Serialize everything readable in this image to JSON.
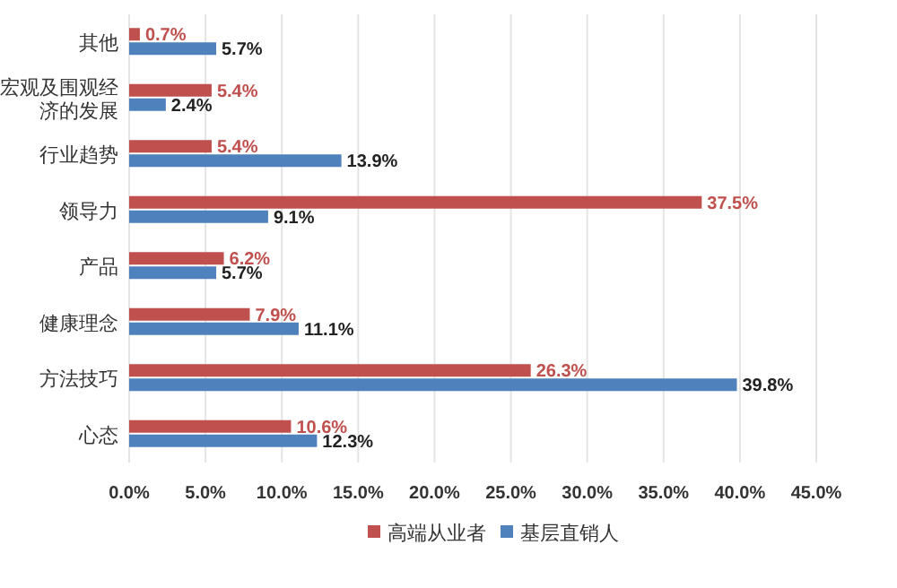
{
  "chart_data": {
    "type": "bar",
    "orientation": "horizontal",
    "categories": [
      "其他",
      "宏观及围观经济的发展",
      "行业趋势",
      "领导力",
      "产品",
      "健康理念",
      "方法技巧",
      "心态"
    ],
    "series": [
      {
        "name": "高端从业者",
        "color": "#c0504d",
        "values": [
          0.7,
          5.4,
          5.4,
          37.5,
          6.2,
          7.9,
          26.3,
          10.6
        ],
        "value_labels": [
          "0.7%",
          "5.4%",
          "5.4%",
          "37.5%",
          "6.2%",
          "7.9%",
          "26.3%",
          "10.6%"
        ]
      },
      {
        "name": "基层直销人",
        "color": "#4f81bd",
        "values": [
          5.7,
          2.4,
          13.9,
          9.1,
          5.7,
          11.1,
          39.8,
          12.3
        ],
        "value_labels": [
          "5.7%",
          "2.4%",
          "13.9%",
          "9.1%",
          "5.7%",
          "11.1%",
          "39.8%",
          "12.3%"
        ]
      }
    ],
    "xlim": [
      0,
      45
    ],
    "xticks": [
      {
        "value": 0,
        "label": "0.0%"
      },
      {
        "value": 5,
        "label": "5.0%"
      },
      {
        "value": 10,
        "label": "10.0%"
      },
      {
        "value": 15,
        "label": "15.0%"
      },
      {
        "value": 20,
        "label": "20.0%"
      },
      {
        "value": 25,
        "label": "25.0%"
      },
      {
        "value": 30,
        "label": "30.0%"
      },
      {
        "value": 35,
        "label": "35.0%"
      },
      {
        "value": 40,
        "label": "40.0%"
      },
      {
        "value": 45,
        "label": "45.0%"
      }
    ],
    "grid": "x",
    "legend": "bottom"
  }
}
